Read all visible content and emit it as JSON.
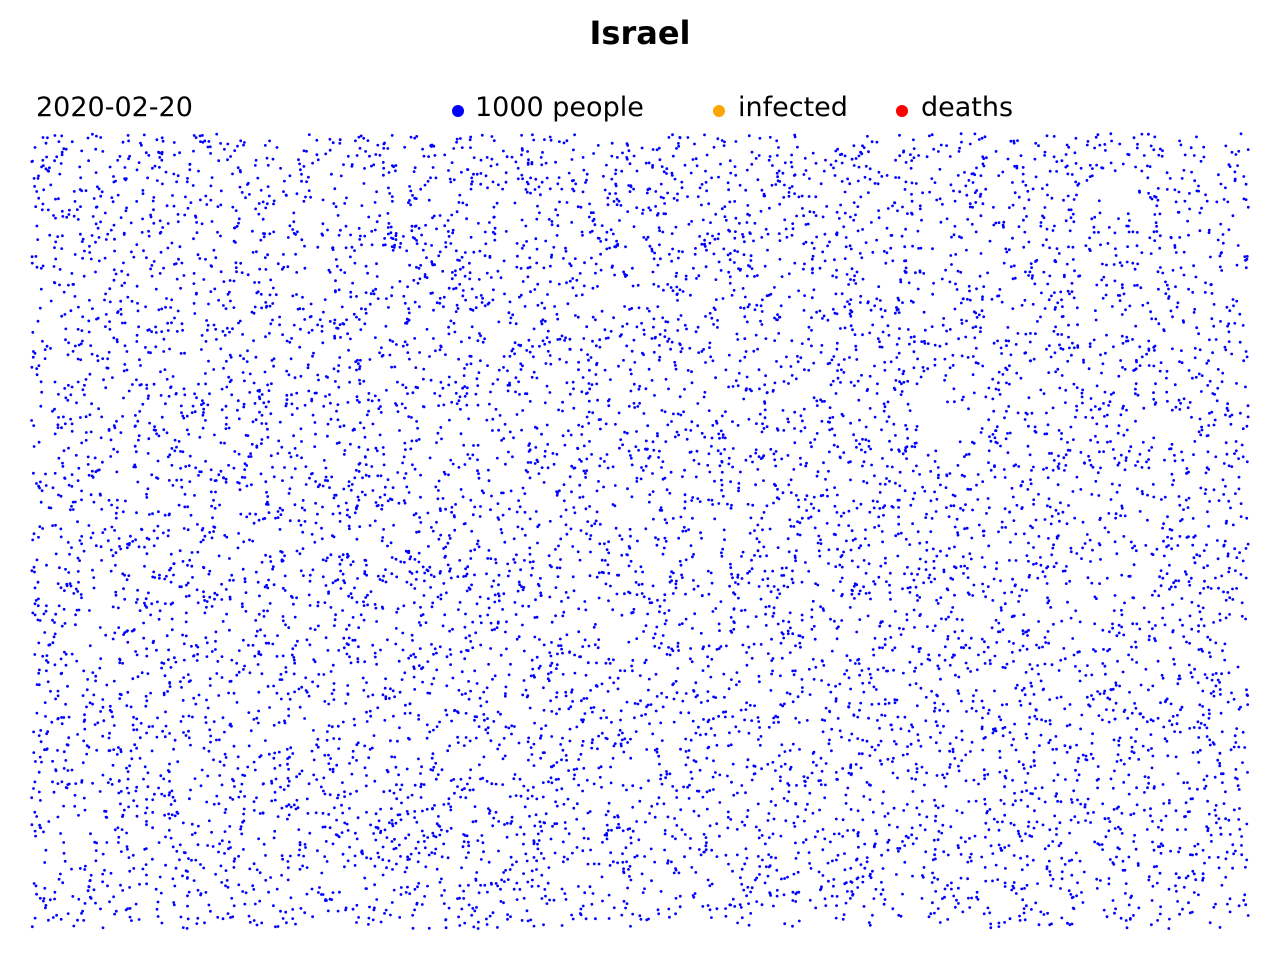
{
  "chart_data": {
    "type": "scatter",
    "title": "Israel",
    "date": "2020-02-20",
    "legend": [
      {
        "label": "1000 people",
        "color": "#0000ff"
      },
      {
        "label": "infected",
        "color": "#ffa500"
      },
      {
        "label": "deaths",
        "color": "#ff0000"
      }
    ],
    "series": [
      {
        "name": "1000 people",
        "color": "#0000ff",
        "count": 9000
      },
      {
        "name": "infected",
        "color": "#ffa500",
        "count": 0
      },
      {
        "name": "deaths",
        "color": "#ff0000",
        "count": 0
      }
    ],
    "legend_position": "top",
    "grid": false,
    "axes_visible": false
  }
}
